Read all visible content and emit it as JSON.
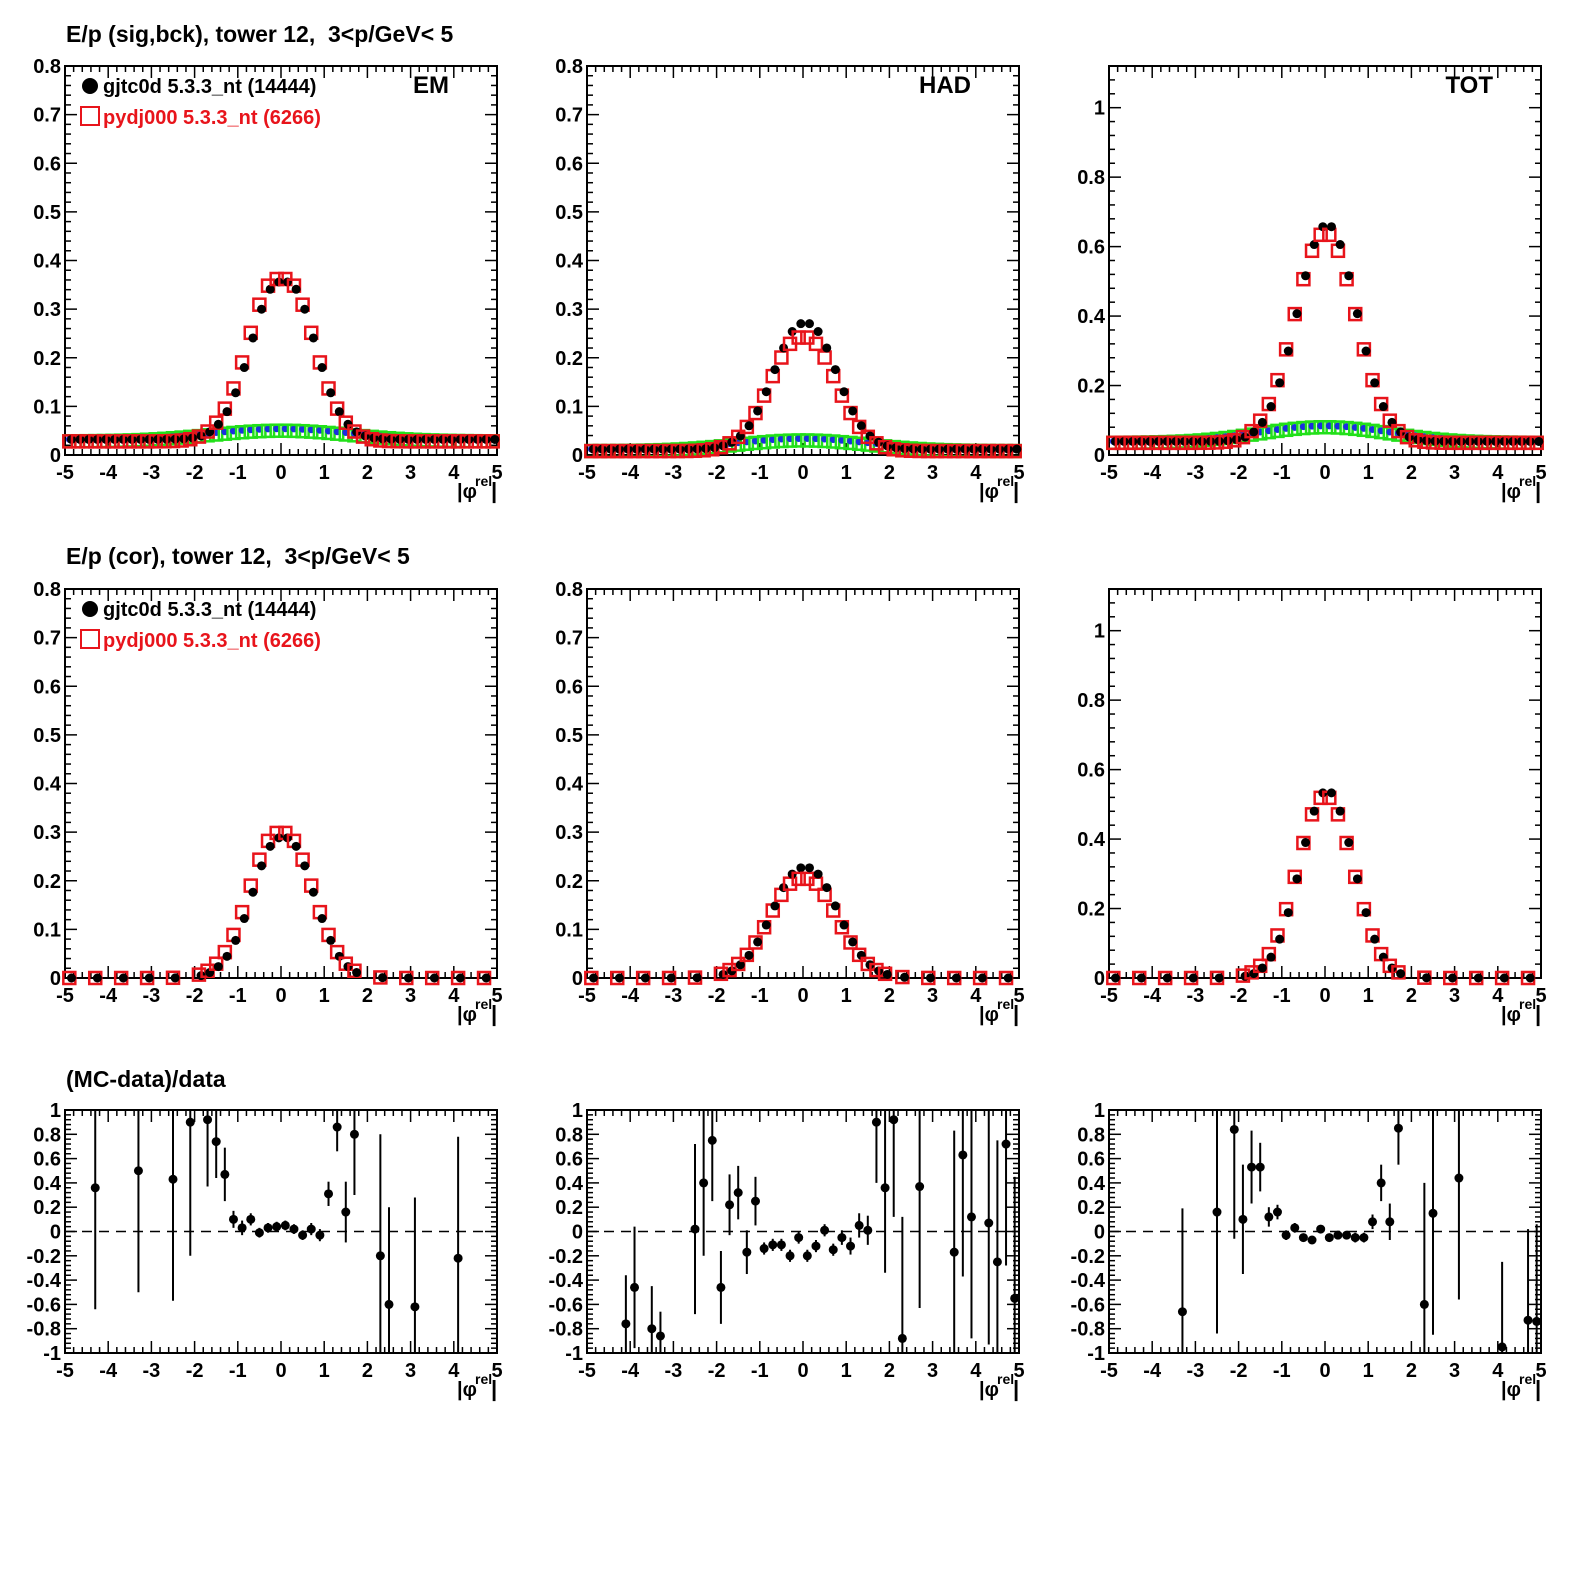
{
  "row_titles": {
    "top": "E/p (sig,bck), tower 12,  3<p/GeV< 5",
    "middle": "E/p (cor), tower 12,  3<p/GeV< 5",
    "bottom": "(MC-data)/data"
  },
  "legend": {
    "data_label": "gjtc0d 5.3.3_nt (14444)",
    "mc_label": "pydj000 5.3.3_nt (6266)"
  },
  "colors": {
    "data": "#000000",
    "mc": "#e8141b",
    "bck_data": "#1a2ee0",
    "bck_mc": "#22e01a",
    "axis": "#000000"
  },
  "axis_title_x": "|φ",
  "axis_title_x_sup": "rel",
  "chart_data": [
    {
      "id": "sigbck-em",
      "type": "scatter",
      "tag": "EM",
      "xlim": [
        -5,
        5
      ],
      "ylim": [
        0,
        0.8
      ],
      "yticks": [
        "0",
        "0.1",
        "0.2",
        "0.3",
        "0.4",
        "0.5",
        "0.6",
        "0.7",
        "0.8"
      ],
      "yvals": [
        0,
        0.1,
        0.2,
        0.3,
        0.4,
        0.5,
        0.6,
        0.7,
        0.8
      ],
      "xticks": [
        "-5",
        "-4",
        "-3",
        "-2",
        "-1",
        "0",
        "1",
        "2",
        "3",
        "4",
        "5"
      ],
      "sig_amp_data": 0.355,
      "sig_amp_mc": 0.365,
      "sig_width": 0.68,
      "sig_dip": 0.03,
      "bck_base": 0.028,
      "bck_amp": 0.022,
      "bck_width": 1.6,
      "show_bck": true,
      "show_legend": true,
      "title": "E/p (sig,bck), tower 12,  3<p/GeV< 5"
    },
    {
      "id": "sigbck-had",
      "type": "scatter",
      "tag": "HAD",
      "xlim": [
        -5,
        5
      ],
      "ylim": [
        0,
        0.8
      ],
      "yticks": [
        "0",
        "0.1",
        "0.2",
        "0.3",
        "0.4",
        "0.5",
        "0.6",
        "0.7",
        "0.8"
      ],
      "yvals": [
        0,
        0.1,
        0.2,
        0.3,
        0.4,
        0.5,
        0.6,
        0.7,
        0.8
      ],
      "xticks": [
        "-5",
        "-4",
        "-3",
        "-2",
        "-1",
        "0",
        "1",
        "2",
        "3",
        "4",
        "5"
      ],
      "sig_amp_data": 0.27,
      "sig_amp_mc": 0.245,
      "sig_width": 0.7,
      "sig_dip": 0.01,
      "bck_base": 0.008,
      "bck_amp": 0.022,
      "bck_width": 1.5,
      "show_bck": true,
      "show_legend": false
    },
    {
      "id": "sigbck-tot",
      "type": "scatter",
      "tag": "TOT",
      "xlim": [
        -5,
        5
      ],
      "ylim": [
        0,
        1.12
      ],
      "yticks": [
        "0",
        "0.2",
        "0.4",
        "0.6",
        "0.8",
        "1"
      ],
      "yvals": [
        0,
        0.2,
        0.4,
        0.6,
        0.8,
        1.0
      ],
      "xticks": [
        "-5",
        "-4",
        "-3",
        "-2",
        "-1",
        "0",
        "1",
        "2",
        "3",
        "4",
        "5"
      ],
      "sig_amp_data": 0.625,
      "sig_amp_mc": 0.605,
      "sig_width": 0.68,
      "sig_dip": 0.0,
      "bck_base": 0.035,
      "bck_amp": 0.045,
      "bck_width": 1.5,
      "show_bck": true,
      "show_legend": false
    },
    {
      "id": "cor-em",
      "type": "scatter",
      "tag": "",
      "xlim": [
        -5,
        5
      ],
      "ylim": [
        0,
        0.8
      ],
      "yticks": [
        "0",
        "0.1",
        "0.2",
        "0.3",
        "0.4",
        "0.5",
        "0.6",
        "0.7",
        "0.8"
      ],
      "yvals": [
        0,
        0.1,
        0.2,
        0.3,
        0.4,
        0.5,
        0.6,
        0.7,
        0.8
      ],
      "xticks": [
        "-5",
        "-4",
        "-3",
        "-2",
        "-1",
        "0",
        "1",
        "2",
        "3",
        "4",
        "5"
      ],
      "sig_amp_data": 0.31,
      "sig_amp_mc": 0.32,
      "sig_width": 0.66,
      "sig_dip": 0.02,
      "show_bck": false,
      "show_legend": true
    },
    {
      "id": "cor-had",
      "type": "scatter",
      "tag": "",
      "xlim": [
        -5,
        5
      ],
      "ylim": [
        0,
        0.8
      ],
      "yticks": [
        "0",
        "0.1",
        "0.2",
        "0.3",
        "0.4",
        "0.5",
        "0.6",
        "0.7",
        "0.8"
      ],
      "yvals": [
        0,
        0.1,
        0.2,
        0.3,
        0.4,
        0.5,
        0.6,
        0.7,
        0.8
      ],
      "xticks": [
        "-5",
        "-4",
        "-3",
        "-2",
        "-1",
        "0",
        "1",
        "2",
        "3",
        "4",
        "5"
      ],
      "sig_amp_data": 0.238,
      "sig_amp_mc": 0.215,
      "sig_width": 0.72,
      "sig_dip": 0.01,
      "show_bck": false,
      "show_legend": false
    },
    {
      "id": "cor-tot",
      "type": "scatter",
      "tag": "",
      "xlim": [
        -5,
        5
      ],
      "ylim": [
        0,
        1.12
      ],
      "yticks": [
        "0",
        "0.2",
        "0.4",
        "0.6",
        "0.8",
        "1"
      ],
      "yvals": [
        0,
        0.2,
        0.4,
        0.6,
        0.8,
        1.0
      ],
      "xticks": [
        "-5",
        "-4",
        "-3",
        "-2",
        "-1",
        "0",
        "1",
        "2",
        "3",
        "4",
        "5"
      ],
      "sig_amp_data": 0.54,
      "sig_amp_mc": 0.525,
      "sig_width": 0.62,
      "sig_dip": 0.0,
      "show_bck": false,
      "show_legend": false
    },
    {
      "id": "ratio-em",
      "type": "errorbar",
      "xlim": [
        -5,
        5
      ],
      "ylim": [
        -1,
        1
      ],
      "yticks": [
        "-1",
        "-0.8",
        "-0.6",
        "-0.4",
        "-0.2",
        "0",
        "0.2",
        "0.4",
        "0.6",
        "0.8",
        "1"
      ],
      "yvals": [
        -1,
        -0.8,
        -0.6,
        -0.4,
        -0.2,
        0,
        0.2,
        0.4,
        0.6,
        0.8,
        1
      ],
      "xticks": [
        "-5",
        "-4",
        "-3",
        "-2",
        "-1",
        "0",
        "1",
        "2",
        "3",
        "4",
        "5"
      ],
      "points": [
        {
          "x": -4.3,
          "y": 0.36,
          "e": 1.0
        },
        {
          "x": -3.3,
          "y": 0.5,
          "e": 1.0
        },
        {
          "x": -2.5,
          "y": 0.43,
          "e": 1.0
        },
        {
          "x": -2.1,
          "y": 0.9,
          "e": 1.1
        },
        {
          "x": -1.7,
          "y": 0.92,
          "e": 0.55
        },
        {
          "x": -1.5,
          "y": 0.74,
          "e": 0.3
        },
        {
          "x": -1.3,
          "y": 0.47,
          "e": 0.22
        },
        {
          "x": -1.1,
          "y": 0.1,
          "e": 0.07
        },
        {
          "x": -0.9,
          "y": 0.03,
          "e": 0.06
        },
        {
          "x": -0.7,
          "y": 0.1,
          "e": 0.05
        },
        {
          "x": -0.5,
          "y": -0.01,
          "e": 0.04
        },
        {
          "x": -0.3,
          "y": 0.03,
          "e": 0.04
        },
        {
          "x": -0.1,
          "y": 0.04,
          "e": 0.04
        },
        {
          "x": 0.1,
          "y": 0.05,
          "e": 0.04
        },
        {
          "x": 0.3,
          "y": 0.02,
          "e": 0.04
        },
        {
          "x": 0.5,
          "y": -0.03,
          "e": 0.04
        },
        {
          "x": 0.7,
          "y": 0.02,
          "e": 0.05
        },
        {
          "x": 0.9,
          "y": -0.03,
          "e": 0.05
        },
        {
          "x": 1.1,
          "y": 0.31,
          "e": 0.1
        },
        {
          "x": 1.3,
          "y": 0.86,
          "e": 0.2
        },
        {
          "x": 1.5,
          "y": 0.16,
          "e": 0.25
        },
        {
          "x": 1.7,
          "y": 0.8,
          "e": 0.5
        },
        {
          "x": 2.3,
          "y": -0.2,
          "e": 1.0
        },
        {
          "x": 2.5,
          "y": -0.6,
          "e": 0.8
        },
        {
          "x": 3.1,
          "y": -0.62,
          "e": 0.9
        },
        {
          "x": 4.1,
          "y": -0.22,
          "e": 1.0
        }
      ]
    },
    {
      "id": "ratio-had",
      "type": "errorbar",
      "xlim": [
        -5,
        5
      ],
      "ylim": [
        -1,
        1
      ],
      "yticks": [
        "-1",
        "-0.8",
        "-0.6",
        "-0.4",
        "-0.2",
        "0",
        "0.2",
        "0.4",
        "0.6",
        "0.8",
        "1"
      ],
      "yvals": [
        -1,
        -0.8,
        -0.6,
        -0.4,
        -0.2,
        0,
        0.2,
        0.4,
        0.6,
        0.8,
        1
      ],
      "xticks": [
        "-5",
        "-4",
        "-3",
        "-2",
        "-1",
        "0",
        "1",
        "2",
        "3",
        "4",
        "5"
      ],
      "points": [
        {
          "x": -4.1,
          "y": -0.76,
          "e": 0.4
        },
        {
          "x": -3.9,
          "y": -0.46,
          "e": 0.5
        },
        {
          "x": -3.5,
          "y": -0.8,
          "e": 0.35
        },
        {
          "x": -3.3,
          "y": -0.86,
          "e": 0.2
        },
        {
          "x": -2.5,
          "y": 0.02,
          "e": 0.7
        },
        {
          "x": -2.3,
          "y": 0.4,
          "e": 0.6
        },
        {
          "x": -2.1,
          "y": 0.75,
          "e": 0.5
        },
        {
          "x": -1.9,
          "y": -0.46,
          "e": 0.3
        },
        {
          "x": -1.7,
          "y": 0.22,
          "e": 0.25
        },
        {
          "x": -1.5,
          "y": 0.32,
          "e": 0.22
        },
        {
          "x": -1.3,
          "y": -0.17,
          "e": 0.18
        },
        {
          "x": -1.1,
          "y": 0.25,
          "e": 0.2
        },
        {
          "x": -0.9,
          "y": -0.14,
          "e": 0.05
        },
        {
          "x": -0.7,
          "y": -0.11,
          "e": 0.05
        },
        {
          "x": -0.5,
          "y": -0.11,
          "e": 0.05
        },
        {
          "x": -0.3,
          "y": -0.2,
          "e": 0.05
        },
        {
          "x": -0.1,
          "y": -0.05,
          "e": 0.05
        },
        {
          "x": 0.1,
          "y": -0.2,
          "e": 0.05
        },
        {
          "x": 0.3,
          "y": -0.12,
          "e": 0.05
        },
        {
          "x": 0.5,
          "y": 0.01,
          "e": 0.05
        },
        {
          "x": 0.7,
          "y": -0.15,
          "e": 0.05
        },
        {
          "x": 0.9,
          "y": -0.05,
          "e": 0.06
        },
        {
          "x": 1.1,
          "y": -0.12,
          "e": 0.07
        },
        {
          "x": 1.3,
          "y": 0.05,
          "e": 0.1
        },
        {
          "x": 1.5,
          "y": 0.01,
          "e": 0.12
        },
        {
          "x": 1.7,
          "y": 0.9,
          "e": 0.5
        },
        {
          "x": 1.9,
          "y": 0.36,
          "e": 0.7
        },
        {
          "x": 2.1,
          "y": 0.92,
          "e": 0.8
        },
        {
          "x": 2.3,
          "y": -0.88,
          "e": 1.0
        },
        {
          "x": 2.7,
          "y": 0.37,
          "e": 1.0
        },
        {
          "x": 3.5,
          "y": -0.17,
          "e": 1.0
        },
        {
          "x": 3.7,
          "y": 0.63,
          "e": 1.0
        },
        {
          "x": 3.9,
          "y": 0.12,
          "e": 1.0
        },
        {
          "x": 4.3,
          "y": 0.07,
          "e": 1.0
        },
        {
          "x": 4.5,
          "y": -0.25,
          "e": 1.0
        },
        {
          "x": 4.7,
          "y": 0.72,
          "e": 1.0
        },
        {
          "x": 4.9,
          "y": -0.55,
          "e": 1.0
        }
      ]
    },
    {
      "id": "ratio-tot",
      "type": "errorbar",
      "xlim": [
        -5,
        5
      ],
      "ylim": [
        -1,
        1
      ],
      "yticks": [
        "-1",
        "-0.8",
        "-0.6",
        "-0.4",
        "-0.2",
        "0",
        "0.2",
        "0.4",
        "0.6",
        "0.8",
        "1"
      ],
      "yvals": [
        -1,
        -0.8,
        -0.6,
        -0.4,
        -0.2,
        0,
        0.2,
        0.4,
        0.6,
        0.8,
        1
      ],
      "xticks": [
        "-5",
        "-4",
        "-3",
        "-2",
        "-1",
        "0",
        "1",
        "2",
        "3",
        "4",
        "5"
      ],
      "points": [
        {
          "x": -3.3,
          "y": -0.66,
          "e": 0.85
        },
        {
          "x": -2.5,
          "y": 0.16,
          "e": 1.0
        },
        {
          "x": -2.1,
          "y": 0.84,
          "e": 0.9
        },
        {
          "x": -1.9,
          "y": 0.1,
          "e": 0.45
        },
        {
          "x": -1.7,
          "y": 0.53,
          "e": 0.3
        },
        {
          "x": -1.5,
          "y": 0.53,
          "e": 0.2
        },
        {
          "x": -1.3,
          "y": 0.12,
          "e": 0.08
        },
        {
          "x": -1.1,
          "y": 0.16,
          "e": 0.06
        },
        {
          "x": -0.9,
          "y": -0.03,
          "e": 0.04
        },
        {
          "x": -0.7,
          "y": 0.03,
          "e": 0.04
        },
        {
          "x": -0.5,
          "y": -0.05,
          "e": 0.03
        },
        {
          "x": -0.3,
          "y": -0.07,
          "e": 0.03
        },
        {
          "x": -0.1,
          "y": 0.02,
          "e": 0.03
        },
        {
          "x": 0.1,
          "y": -0.05,
          "e": 0.03
        },
        {
          "x": 0.3,
          "y": -0.03,
          "e": 0.03
        },
        {
          "x": 0.5,
          "y": -0.03,
          "e": 0.03
        },
        {
          "x": 0.7,
          "y": -0.05,
          "e": 0.04
        },
        {
          "x": 0.9,
          "y": -0.05,
          "e": 0.04
        },
        {
          "x": 1.1,
          "y": 0.08,
          "e": 0.06
        },
        {
          "x": 1.3,
          "y": 0.4,
          "e": 0.15
        },
        {
          "x": 1.5,
          "y": 0.08,
          "e": 0.15
        },
        {
          "x": 1.7,
          "y": 0.85,
          "e": 0.3
        },
        {
          "x": 2.3,
          "y": -0.6,
          "e": 1.0
        },
        {
          "x": 2.5,
          "y": 0.15,
          "e": 1.0
        },
        {
          "x": 3.1,
          "y": 0.44,
          "e": 1.0
        },
        {
          "x": 4.1,
          "y": -0.95,
          "e": 0.7
        },
        {
          "x": 4.7,
          "y": -0.73,
          "e": 0.75
        },
        {
          "x": 4.9,
          "y": -0.74,
          "e": 0.8
        }
      ]
    }
  ]
}
